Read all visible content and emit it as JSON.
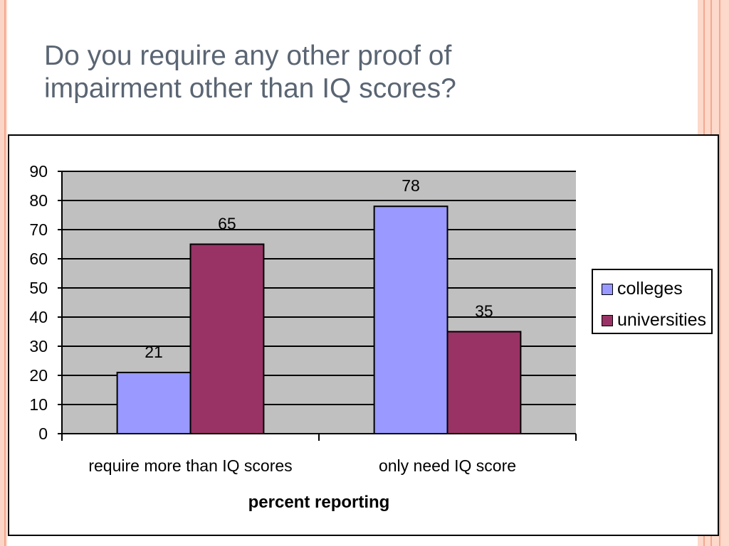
{
  "slide": {
    "title_lines": [
      "Do you require any other proof of",
      "impairment other than IQ scores?"
    ]
  },
  "colors": {
    "title_text": "#5a6573",
    "plot_background": "#c0c0c0",
    "gridline": "#000000",
    "border_stripes": "#f3a98f",
    "border_fill": "#fcd9ca"
  },
  "chart_data": {
    "type": "bar",
    "title": "",
    "xlabel": "percent reporting",
    "ylabel": "",
    "categories": [
      "require more than IQ scores",
      "only need IQ score"
    ],
    "series": [
      {
        "name": "colleges",
        "values": [
          21,
          78
        ],
        "color": "#9999ff"
      },
      {
        "name": "universities",
        "values": [
          65,
          35
        ],
        "color": "#993366"
      }
    ],
    "ylim": [
      0,
      90
    ],
    "yticks": [
      0,
      10,
      20,
      30,
      40,
      50,
      60,
      70,
      80,
      90
    ],
    "data_labels": true,
    "grid": true,
    "legend_position": "right"
  }
}
